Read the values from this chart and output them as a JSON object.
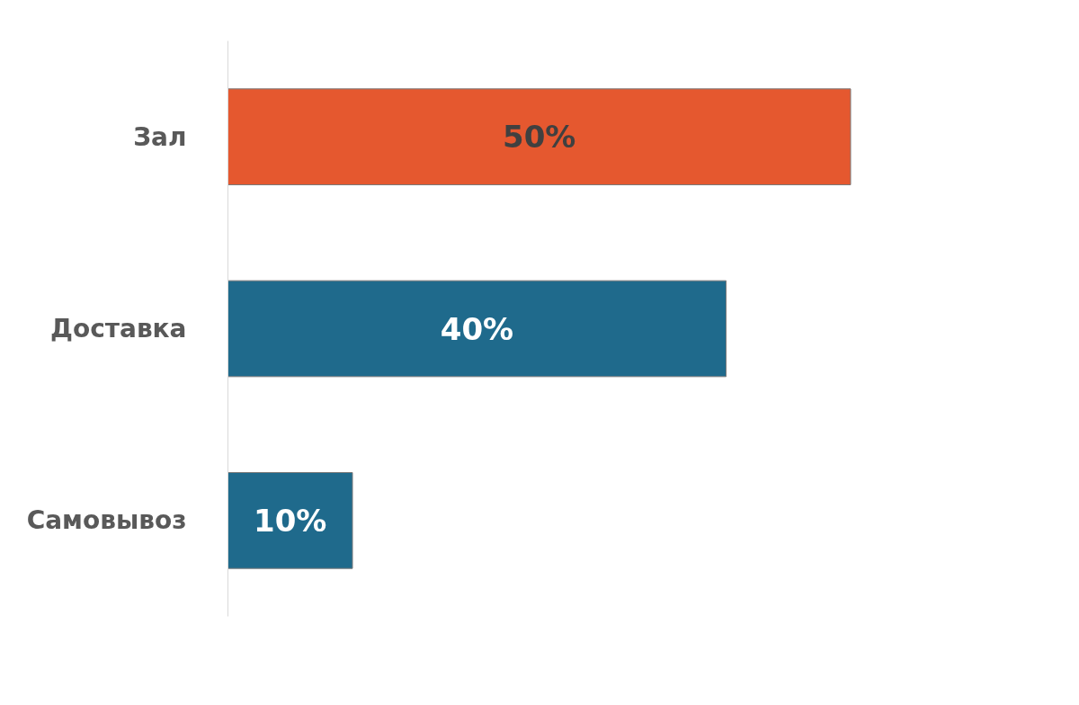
{
  "chart_data": {
    "type": "bar",
    "orientation": "horizontal",
    "categories": [
      "Зал",
      "Доставка",
      "Самовывоз"
    ],
    "values": [
      50,
      40,
      10
    ],
    "colors": [
      "#e5582f",
      "#1f6a8c",
      "#1f6a8c"
    ],
    "value_labels": [
      "50%",
      "40%",
      "10%"
    ],
    "tick_labels": "y",
    "grid": false
  }
}
